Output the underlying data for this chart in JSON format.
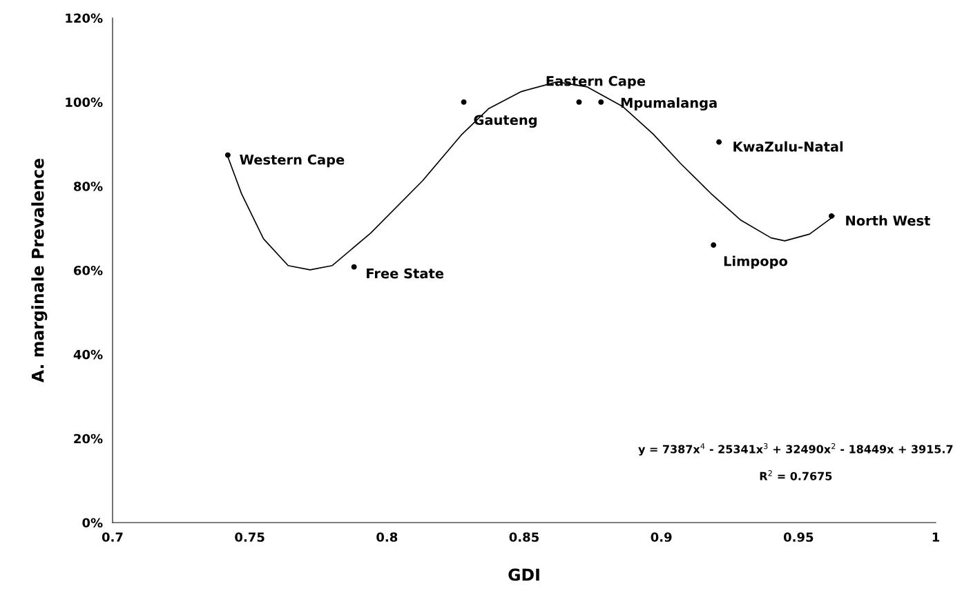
{
  "chart_data": {
    "type": "scatter",
    "xlabel": "GDI",
    "ylabel": "A. marginale Prevalence",
    "xlim": [
      0.7,
      1
    ],
    "xticks": [
      0.7,
      0.75,
      0.8,
      0.85,
      0.9,
      0.95,
      1
    ],
    "ylim": [
      0,
      120
    ],
    "yticks": [
      {
        "value": 0,
        "label": "0%"
      },
      {
        "value": 20,
        "label": "20%"
      },
      {
        "value": 40,
        "label": "40%"
      },
      {
        "value": 60,
        "label": "60%"
      },
      {
        "value": 80,
        "label": "80%"
      },
      {
        "value": 100,
        "label": "100%"
      },
      {
        "value": 120,
        "label": "120%"
      }
    ],
    "grid": false,
    "legend": false,
    "series": [
      {
        "color": "#000000",
        "marker": "circle",
        "x": [
          0.742,
          0.788,
          0.828,
          0.87,
          0.878,
          0.921,
          0.919,
          0.962
        ],
        "values": [
          87.4,
          60.8,
          100,
          100,
          100,
          90.5,
          66,
          72.9
        ]
      },
      {
        "type": "line",
        "color": "#000000",
        "marker": "none",
        "line_style": "solid",
        "x": [
          0.742,
          0.747,
          0.755,
          0.764,
          0.772,
          0.78,
          0.794,
          0.813,
          0.827,
          0.837,
          0.849,
          0.862,
          0.873,
          0.886,
          0.897,
          0.907,
          0.918,
          0.929,
          0.94,
          0.945,
          0.954,
          0.963
        ],
        "values": [
          87.0,
          78.2,
          67.5,
          61.1,
          60.1,
          61.1,
          68.8,
          81.3,
          92.1,
          98.4,
          102.5,
          104.8,
          103.6,
          98.9,
          92.4,
          85.4,
          78.3,
          71.9,
          67.7,
          67.0,
          68.6,
          72.9
        ]
      }
    ],
    "annotations": [
      {
        "text": "Western Cape",
        "x": 0.742,
        "y": 87.4
      },
      {
        "text": "Free State",
        "x": 0.788,
        "y": 60.8
      },
      {
        "text": "Gauteng",
        "x": 0.828,
        "y": 100
      },
      {
        "text": "Eastern Cape",
        "x": 0.87,
        "y": 100
      },
      {
        "text": "Mpumalanga",
        "x": 0.878,
        "y": 100
      },
      {
        "text": "KwaZulu-Natal",
        "x": 0.921,
        "y": 90.5
      },
      {
        "text": "Limpopo",
        "x": 0.919,
        "y": 66
      },
      {
        "text": "North West",
        "x": 0.962,
        "y": 72.9
      },
      "y = 7387x$^{4}$ - 25341x$^{3}$ + 32490x$^{2}$ - 18449x + 3915.7",
      "R$^{2}$ = 0.7675"
    ]
  }
}
